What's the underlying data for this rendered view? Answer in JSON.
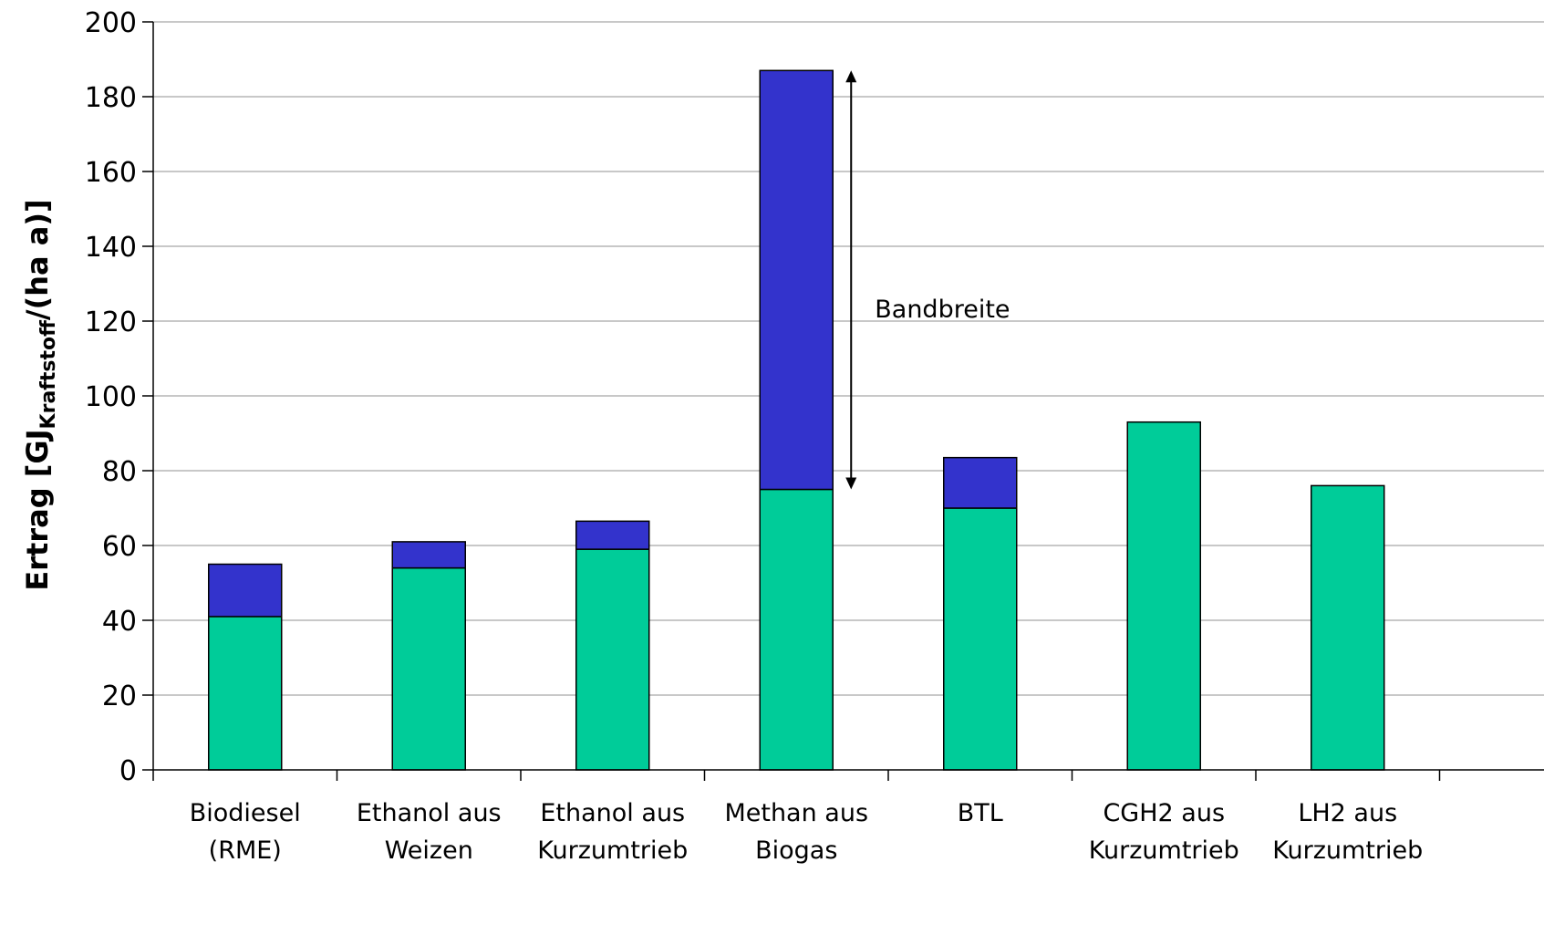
{
  "chart_data": {
    "type": "bar",
    "stacked": true,
    "categories": [
      [
        "Biodiesel",
        "(RME)"
      ],
      [
        "Ethanol aus",
        "Weizen"
      ],
      [
        "Ethanol aus",
        "Kurzumtrieb"
      ],
      [
        "Methan aus",
        "Biogas"
      ],
      [
        "BTL"
      ],
      [
        "CGH2 aus",
        "Kurzumtrieb"
      ],
      [
        "LH2 aus",
        "Kurzumtrieb"
      ]
    ],
    "series": [
      {
        "values": [
          41,
          54,
          59,
          75,
          70,
          93,
          76
        ],
        "color": "#00CC99"
      },
      {
        "values": [
          14,
          7,
          7.5,
          112,
          13.5,
          0,
          0
        ],
        "color": "#3333CC"
      }
    ],
    "ylabel": {
      "prefix": "Ertrag [GJ",
      "subscript": "Kraftstoff",
      "suffix": "/(ha a)]"
    },
    "ylim": [
      0,
      200
    ],
    "yticks": [
      "0",
      "20",
      "40",
      "60",
      "80",
      "100",
      "120",
      "140",
      "160",
      "180",
      "200"
    ],
    "grid": true,
    "annotation": {
      "text": "Bandbreite",
      "category_index": 3,
      "from": 75,
      "to": 187
    }
  }
}
